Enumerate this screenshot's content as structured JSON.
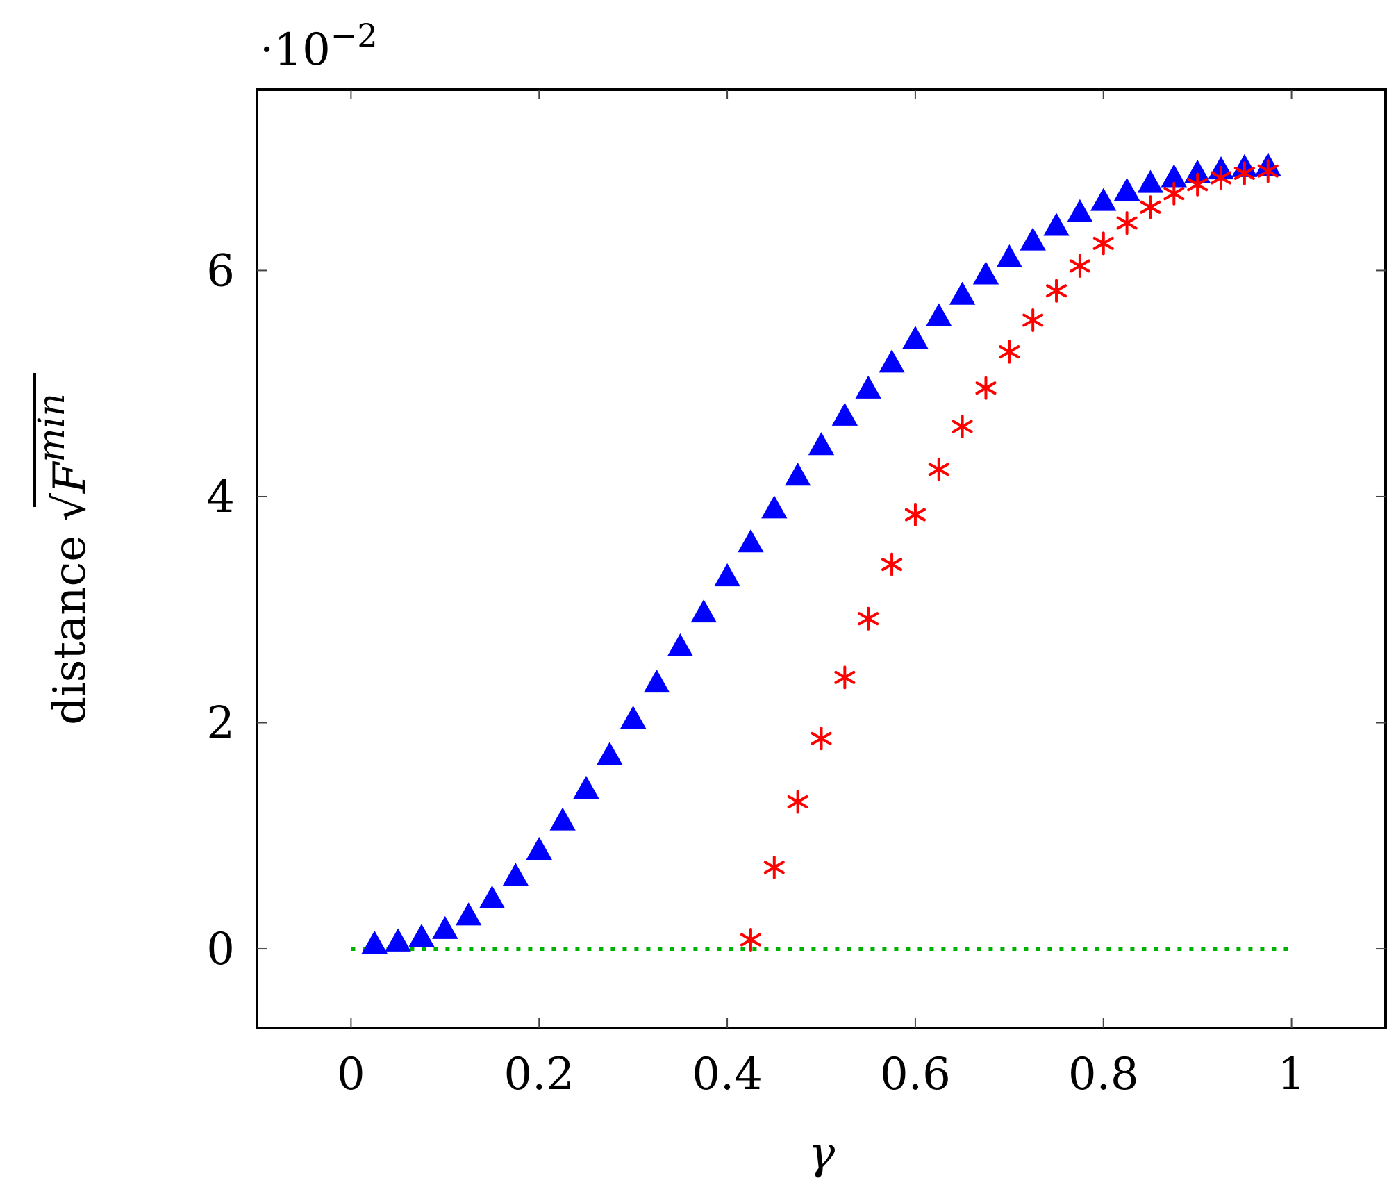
{
  "chart_data": {
    "type": "scatter",
    "title": "",
    "xlabel": "γ",
    "ylabel_text": "distance",
    "ylabel_math": "F",
    "ylabel_superscript": "min",
    "y_scale_note_base": "·10",
    "y_scale_note_exponent": "−2",
    "xlim": [
      -0.1,
      1.1
    ],
    "ylim": [
      -0.7,
      7.6
    ],
    "x_ticks": [
      0,
      0.2,
      0.4,
      0.6,
      0.8,
      1
    ],
    "x_tick_labels": [
      "0",
      "0.2",
      "0.4",
      "0.6",
      "0.8",
      "1"
    ],
    "y_ticks": [
      0,
      2,
      4,
      6
    ],
    "y_tick_labels": [
      "0",
      "2",
      "4",
      "6"
    ],
    "grid": false,
    "legend": "none",
    "series": [
      {
        "marker": "triangle",
        "color": "#0000ff",
        "x": [
          0.025,
          0.05,
          0.075,
          0.1,
          0.125,
          0.15,
          0.175,
          0.2,
          0.225,
          0.25,
          0.275,
          0.3,
          0.325,
          0.35,
          0.375,
          0.4,
          0.425,
          0.45,
          0.475,
          0.5,
          0.525,
          0.55,
          0.575,
          0.6,
          0.625,
          0.65,
          0.675,
          0.7,
          0.725,
          0.75,
          0.775,
          0.8,
          0.825,
          0.85,
          0.875,
          0.9,
          0.925,
          0.95,
          0.975
        ],
        "y": [
          0.03,
          0.05,
          0.09,
          0.16,
          0.28,
          0.43,
          0.63,
          0.86,
          1.12,
          1.4,
          1.7,
          2.02,
          2.34,
          2.66,
          2.96,
          3.28,
          3.58,
          3.88,
          4.17,
          4.44,
          4.7,
          4.94,
          5.17,
          5.38,
          5.58,
          5.77,
          5.95,
          6.1,
          6.25,
          6.38,
          6.5,
          6.6,
          6.69,
          6.76,
          6.81,
          6.85,
          6.88,
          6.9,
          6.91
        ]
      },
      {
        "marker": "asterisk",
        "color": "#ff0000",
        "x": [
          0.425,
          0.45,
          0.475,
          0.5,
          0.525,
          0.55,
          0.575,
          0.6,
          0.625,
          0.65,
          0.675,
          0.7,
          0.725,
          0.75,
          0.775,
          0.8,
          0.825,
          0.85,
          0.875,
          0.9,
          0.925,
          0.95,
          0.975
        ],
        "y": [
          0.08,
          0.72,
          1.3,
          1.86,
          2.4,
          2.92,
          3.4,
          3.84,
          4.24,
          4.62,
          4.96,
          5.28,
          5.56,
          5.82,
          6.04,
          6.24,
          6.42,
          6.56,
          6.68,
          6.76,
          6.82,
          6.86,
          6.88
        ]
      },
      {
        "marker": "dotted-line",
        "color": "#00b000",
        "x": [
          0,
          1
        ],
        "y": [
          0,
          0
        ]
      }
    ]
  }
}
